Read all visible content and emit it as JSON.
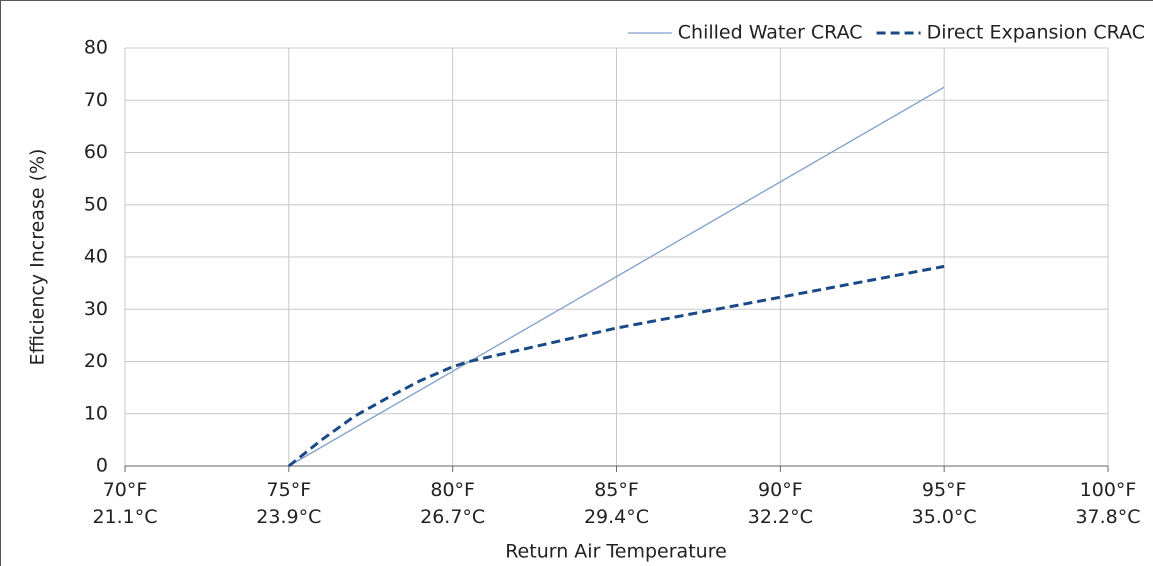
{
  "chart_data": {
    "type": "line",
    "xlabel": "Return Air Temperature",
    "ylabel": "Efficiency Increase (%)",
    "xlim": [
      70,
      100
    ],
    "xticks": [
      {
        "value": 70,
        "label": "70°F\n21.1°C"
      },
      {
        "value": 75,
        "label": "75°F\n23.9°C"
      },
      {
        "value": 80,
        "label": "80°F\n26.7°C"
      },
      {
        "value": 85,
        "label": "85°F\n29.4°C"
      },
      {
        "value": 90,
        "label": "90°F\n32.2°C"
      },
      {
        "value": 95,
        "label": "95°F\n35.0°C"
      },
      {
        "value": 100,
        "label": "100°F\n37.8°C"
      }
    ],
    "ylim": [
      0,
      80
    ],
    "yticks": [
      0,
      10,
      20,
      30,
      40,
      50,
      60,
      70,
      80
    ],
    "grid": true,
    "legend": "upper right",
    "series": [
      {
        "name": "Chilled Water CRAC",
        "color": "#7f9fc8",
        "dash": "solid",
        "x": [
          75,
          95
        ],
        "values": [
          0,
          72.5
        ]
      },
      {
        "name": "Direct Expansion CRAC",
        "color": "#1a4a86",
        "dash": "dashed",
        "x": [
          75,
          76,
          77,
          78,
          79,
          80,
          80.5,
          85,
          90,
          95
        ],
        "values": [
          0,
          5,
          9.5,
          13,
          16.3,
          19,
          20,
          26.4,
          32.3,
          38.2
        ]
      }
    ]
  }
}
